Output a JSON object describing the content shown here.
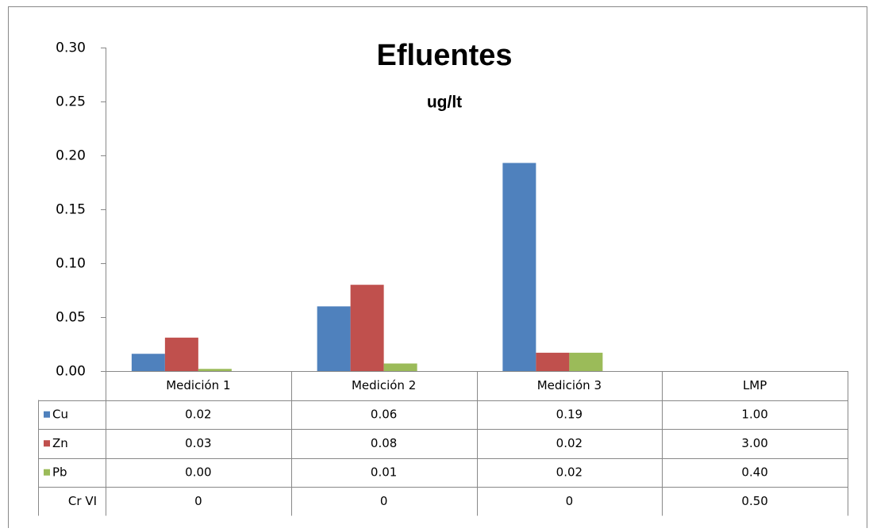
{
  "chart_data": {
    "type": "bar",
    "title": "Efluentes",
    "subtitle": "ug/lt",
    "categories": [
      "Medición 1",
      "Medición 2",
      "Medición 3",
      "LMP"
    ],
    "series": [
      {
        "name": "Cu",
        "color": "#4f81bd",
        "values": [
          0.016,
          0.06,
          0.193,
          null
        ],
        "value_labels": [
          "0.02",
          "0.06",
          "0.19",
          "1.00"
        ]
      },
      {
        "name": "Zn",
        "color": "#c0504d",
        "values": [
          0.031,
          0.08,
          0.017,
          null
        ],
        "value_labels": [
          "0.03",
          "0.08",
          "0.02",
          "3.00"
        ]
      },
      {
        "name": "Pb",
        "color": "#9bbb59",
        "values": [
          0.002,
          0.007,
          0.017,
          null
        ],
        "value_labels": [
          "0.00",
          "0.01",
          "0.02",
          "0.40"
        ]
      },
      {
        "name": "Cr VI",
        "values": [
          0,
          0,
          0,
          null
        ],
        "value_labels": [
          "0",
          "0",
          "0",
          "0.50"
        ]
      }
    ],
    "ylim": [
      0,
      0.3
    ],
    "yticks": [
      {
        "value": 0,
        "label": "0.00"
      },
      {
        "value": 0.05,
        "label": "0.05"
      },
      {
        "value": 0.1,
        "label": "0.10"
      },
      {
        "value": 0.15,
        "label": "0.15"
      },
      {
        "value": 0.2,
        "label": "0.20"
      },
      {
        "value": 0.25,
        "label": "0.25"
      },
      {
        "value": 0.3,
        "label": "0.30"
      }
    ],
    "grid": false
  }
}
